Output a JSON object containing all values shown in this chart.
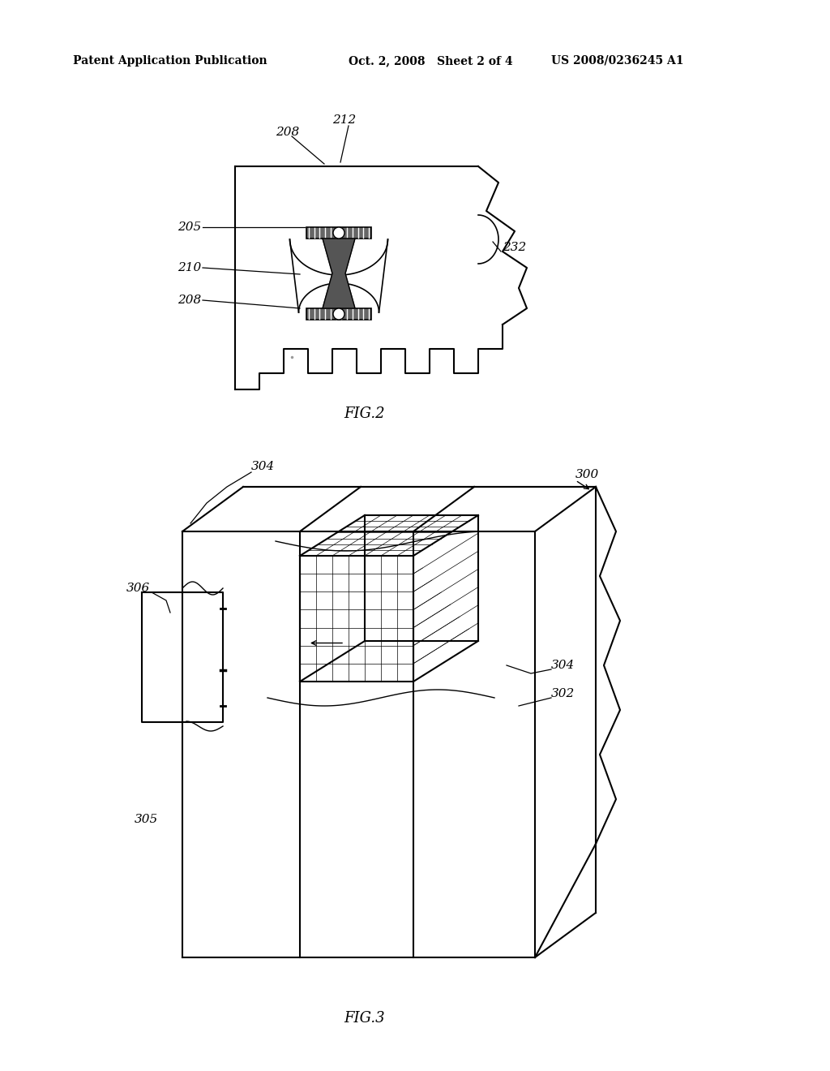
{
  "bg_color": "#ffffff",
  "line_color": "#000000",
  "header_left": "Patent Application Publication",
  "header_mid": "Oct. 2, 2008   Sheet 2 of 4",
  "header_right": "US 2008/0236245 A1",
  "fig2_label": "FIG.2",
  "fig3_label": "FIG.3"
}
